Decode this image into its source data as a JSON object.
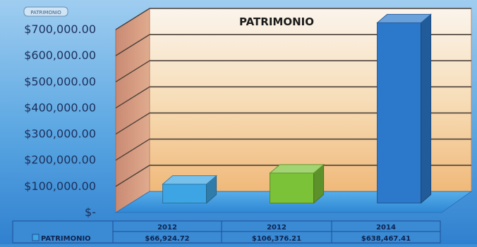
{
  "chart_data": {
    "type": "bar",
    "title": "PATRIMONIO",
    "corner_label": "PATRIMONIO",
    "categories": [
      "2012",
      "2012",
      "2014"
    ],
    "series": [
      {
        "name": "PATRIMONIO",
        "values": [
          66924.72,
          106376.21,
          638467.41
        ]
      }
    ],
    "table_row_label": "PATRIMONIO",
    "table_values": [
      "$66,924.72",
      "$106,376.21",
      "$638,467.41"
    ],
    "y_ticks": [
      "$-",
      "$100,000.00",
      "$200,000.00",
      "$300,000.00",
      "$400,000.00",
      "$500,000.00",
      "$600,000.00",
      "$700,000.00"
    ],
    "ylim": [
      0,
      700000
    ],
    "bar_colors": [
      "#3ea5e4",
      "#7cc238",
      "#2c79cc"
    ],
    "grid": true,
    "legend": "data table"
  }
}
